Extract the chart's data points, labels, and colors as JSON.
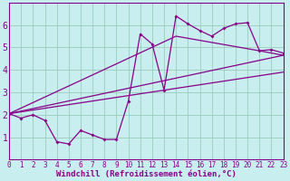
{
  "xlabel": "Windchill (Refroidissement éolien,°C)",
  "xlim": [
    0,
    23
  ],
  "ylim": [
    0,
    7
  ],
  "xticks": [
    0,
    1,
    2,
    3,
    4,
    5,
    6,
    7,
    8,
    9,
    10,
    11,
    12,
    13,
    14,
    15,
    16,
    17,
    18,
    19,
    20,
    21,
    22,
    23
  ],
  "yticks": [
    1,
    2,
    3,
    4,
    5,
    6
  ],
  "bg_color": "#c8eef0",
  "line_color": "#880088",
  "grid_color": "#99ccbb",
  "line1_x": [
    0,
    1,
    2,
    3,
    4,
    5,
    6,
    7,
    8,
    9,
    10,
    11,
    12,
    13,
    14,
    15,
    16,
    17,
    18,
    19,
    20,
    21,
    22,
    23
  ],
  "line1_y": [
    2.05,
    1.85,
    2.0,
    1.75,
    0.8,
    0.7,
    1.3,
    1.1,
    0.9,
    0.9,
    2.6,
    5.6,
    5.15,
    3.1,
    6.4,
    6.05,
    5.75,
    5.5,
    5.85,
    6.05,
    6.1,
    4.85,
    4.9,
    4.75
  ],
  "line2_x": [
    0,
    23
  ],
  "line2_y": [
    2.05,
    3.9
  ],
  "line3_x": [
    0,
    23
  ],
  "line3_y": [
    2.05,
    4.65
  ],
  "line4_x": [
    0,
    14,
    21,
    23
  ],
  "line4_y": [
    2.05,
    5.5,
    4.85,
    4.65
  ],
  "fontsize_xlabel": 6.5,
  "fontsize_yticks": 7,
  "fontsize_xticks": 5.5
}
